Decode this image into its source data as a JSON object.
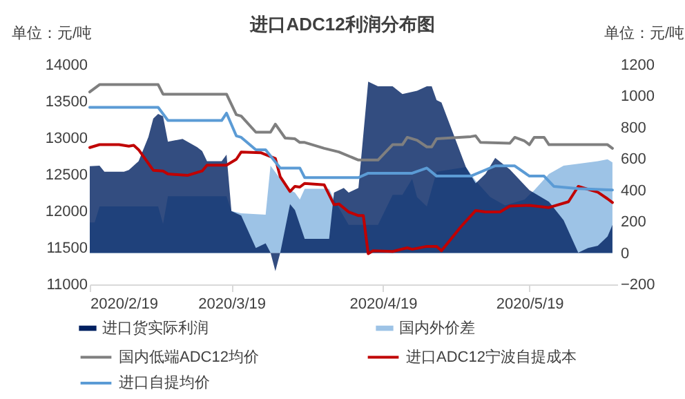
{
  "chart_data": {
    "type": "line",
    "title": "进口ADC12利润分布图",
    "ylabel": "单位：元/吨",
    "y2label": "单位：元/吨",
    "xlim": [
      "2020-02-19",
      "2020-06-06"
    ],
    "xticks": [
      {
        "value": "2020-02-19",
        "label": "2020/2/19"
      },
      {
        "value": "2020-03-19",
        "label": "2020/3/19"
      },
      {
        "value": "2020-04-19",
        "label": "2020/4/19"
      },
      {
        "value": "2020-05-19",
        "label": "2020/5/19"
      }
    ],
    "ylim": [
      11000,
      14000
    ],
    "yticks": [
      11000,
      11500,
      12000,
      12500,
      13000,
      13500,
      14000
    ],
    "y2lim": [
      -200,
      1200
    ],
    "y2ticks": [
      -200,
      0,
      200,
      400,
      600,
      800,
      1000,
      1200
    ],
    "grid": false,
    "legend": "bottom",
    "series": [
      {
        "name": "进口货实际利润",
        "type": "area",
        "axis": "y2",
        "color": "#002060",
        "x": [
          "2020-02-19",
          "2020-02-21",
          "2020-02-22",
          "2020-02-26",
          "2020-02-27",
          "2020-02-29",
          "2020-03-02",
          "2020-03-03",
          "2020-03-04",
          "2020-03-05",
          "2020-03-06",
          "2020-03-09",
          "2020-03-10",
          "2020-03-12",
          "2020-03-13",
          "2020-03-14",
          "2020-03-17",
          "2020-03-18",
          "2020-03-19",
          "2020-03-21",
          "2020-03-24",
          "2020-03-26",
          "2020-03-27",
          "2020-03-28",
          "2020-03-29",
          "2020-03-31",
          "2020-04-01",
          "2020-04-03",
          "2020-04-08",
          "2020-04-09",
          "2020-04-11",
          "2020-04-12",
          "2020-04-14",
          "2020-04-16",
          "2020-04-18",
          "2020-04-21",
          "2020-04-23",
          "2020-04-26",
          "2020-04-28",
          "2020-04-29",
          "2020-04-30",
          "2020-05-01",
          "2020-05-06",
          "2020-05-08",
          "2020-05-10",
          "2020-05-12",
          "2020-05-15",
          "2020-05-19",
          "2020-05-23",
          "2020-05-26",
          "2020-05-29",
          "2020-05-31",
          "2020-06-02",
          "2020-06-04",
          "2020-06-05"
        ],
        "values": [
          554,
          557,
          519,
          519,
          530,
          586,
          740,
          858,
          887,
          872,
          710,
          728,
          710,
          675,
          651,
          586,
          586,
          628,
          268,
          239,
          32,
          62,
          3,
          -115,
          3,
          312,
          274,
          91,
          91,
          386,
          415,
          386,
          415,
          1093,
          1064,
          1064,
          1014,
          1035,
          1064,
          1064,
          975,
          960,
          548,
          445,
          504,
          607,
          533,
          401,
          327,
          209,
          3,
          32,
          47,
          106,
          180
        ]
      },
      {
        "name": "国内外价差",
        "type": "area",
        "axis": "y2",
        "color": "#9dc3e6",
        "x": [
          "2020-02-19",
          "2020-02-20",
          "2020-02-21",
          "2020-03-04",
          "2020-03-05",
          "2020-03-06",
          "2020-03-18",
          "2020-03-19",
          "2020-03-21",
          "2020-03-26",
          "2020-03-27",
          "2020-03-29",
          "2020-03-31",
          "2020-04-01",
          "2020-04-02",
          "2020-04-03",
          "2020-04-08",
          "2020-04-09",
          "2020-04-12",
          "2020-04-18",
          "2020-04-21",
          "2020-04-23",
          "2020-04-25",
          "2020-04-26",
          "2020-04-28",
          "2020-04-30",
          "2020-05-06",
          "2020-05-08",
          "2020-05-11",
          "2020-05-14",
          "2020-05-18",
          "2020-05-20",
          "2020-05-23",
          "2020-05-26",
          "2020-05-29",
          "2020-06-02",
          "2020-06-04",
          "2020-06-05"
        ],
        "values": [
          195,
          195,
          298,
          298,
          186,
          362,
          362,
          268,
          253,
          245,
          557,
          474,
          401,
          386,
          342,
          410,
          410,
          342,
          180,
          180,
          371,
          371,
          474,
          357,
          298,
          519,
          548,
          460,
          357,
          304,
          342,
          401,
          504,
          557,
          569,
          586,
          598,
          578
        ]
      },
      {
        "name": "国内低端ADC12均价",
        "color": "#7f7f7f",
        "x": [
          "2020-02-19",
          "2020-02-21",
          "2020-03-04",
          "2020-03-05",
          "2020-03-18",
          "2020-03-20",
          "2020-03-21",
          "2020-03-24",
          "2020-03-27",
          "2020-03-28",
          "2020-03-30",
          "2020-04-01",
          "2020-04-02",
          "2020-04-03",
          "2020-04-07",
          "2020-04-10",
          "2020-04-14",
          "2020-04-18",
          "2020-04-21",
          "2020-04-23",
          "2020-04-24",
          "2020-04-26",
          "2020-04-28",
          "2020-04-29",
          "2020-04-30",
          "2020-05-07",
          "2020-05-08",
          "2020-05-09",
          "2020-05-15",
          "2020-05-16",
          "2020-05-18",
          "2020-05-19",
          "2020-05-20",
          "2020-05-22",
          "2020-05-23",
          "2020-06-04",
          "2020-06-05"
        ],
        "values": [
          13630,
          13730,
          13730,
          13600,
          13600,
          13320,
          13300,
          13080,
          13080,
          13190,
          13000,
          12990,
          12940,
          12940,
          12860,
          12810,
          12700,
          12700,
          12910,
          12910,
          13010,
          12970,
          12880,
          12880,
          12990,
          13020,
          13030,
          12940,
          12930,
          13010,
          12960,
          12910,
          13010,
          13010,
          12910,
          12910,
          12860
        ]
      },
      {
        "name": "进口ADC12宁波自提成本",
        "color": "#c00000",
        "x": [
          "2020-02-19",
          "2020-02-21",
          "2020-02-25",
          "2020-02-27",
          "2020-02-28",
          "2020-02-29",
          "2020-03-03",
          "2020-03-05",
          "2020-03-06",
          "2020-03-10",
          "2020-03-13",
          "2020-03-14",
          "2020-03-18",
          "2020-03-20",
          "2020-03-21",
          "2020-03-25",
          "2020-03-28",
          "2020-03-29",
          "2020-03-31",
          "2020-04-01",
          "2020-04-02",
          "2020-04-03",
          "2020-04-07",
          "2020-04-09",
          "2020-04-10",
          "2020-04-12",
          "2020-04-14",
          "2020-04-15",
          "2020-04-16",
          "2020-04-17",
          "2020-04-21",
          "2020-04-24",
          "2020-04-25",
          "2020-04-28",
          "2020-04-30",
          "2020-05-01",
          "2020-05-05",
          "2020-05-08",
          "2020-05-10",
          "2020-05-13",
          "2020-05-15",
          "2020-05-19",
          "2020-05-23",
          "2020-05-27",
          "2020-05-29",
          "2020-06-02",
          "2020-06-04",
          "2020-06-05"
        ],
        "values": [
          12870,
          12910,
          12910,
          12890,
          12900,
          12840,
          12560,
          12550,
          12510,
          12490,
          12550,
          12630,
          12630,
          12710,
          12810,
          12800,
          12720,
          12470,
          12270,
          12340,
          12330,
          12380,
          12360,
          12090,
          12100,
          11990,
          11940,
          11940,
          11420,
          11460,
          11450,
          11500,
          11480,
          11520,
          11520,
          11460,
          11790,
          12010,
          11990,
          11990,
          12070,
          12080,
          12050,
          12130,
          12340,
          12260,
          12170,
          12120
        ]
      },
      {
        "name": "进口自提均价",
        "color": "#5b9bd5",
        "x": [
          "2020-02-19",
          "2020-03-04",
          "2020-03-06",
          "2020-03-17",
          "2020-03-18",
          "2020-03-20",
          "2020-03-21",
          "2020-03-24",
          "2020-03-26",
          "2020-03-29",
          "2020-04-02",
          "2020-04-03",
          "2020-04-14",
          "2020-04-16",
          "2020-04-25",
          "2020-04-28",
          "2020-04-30",
          "2020-05-07",
          "2020-05-12",
          "2020-05-16",
          "2020-05-19",
          "2020-05-22",
          "2020-05-24",
          "2020-05-29",
          "2020-06-05"
        ],
        "values": [
          13420,
          13420,
          13240,
          13240,
          13340,
          13030,
          13010,
          12840,
          12840,
          12590,
          12590,
          12460,
          12460,
          12520,
          12520,
          12590,
          12480,
          12480,
          12620,
          12620,
          12480,
          12480,
          12340,
          12310,
          12290
        ]
      }
    ]
  }
}
